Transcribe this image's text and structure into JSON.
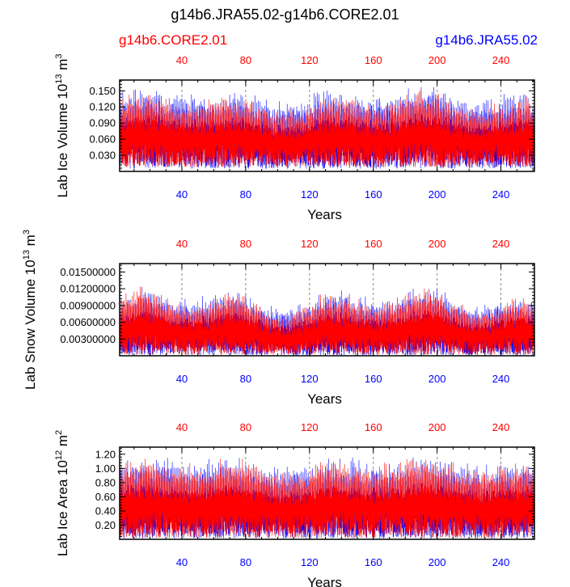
{
  "title": "g14b6.JRA55.02-g14b6.CORE2.01",
  "legend": {
    "left_label": "g14b6.CORE2.01",
    "right_label": "g14b6.JRA55.02"
  },
  "colors": {
    "core": "#ff0000",
    "jra": "#0000ff",
    "frame": "#000000"
  },
  "chart_data": [
    {
      "type": "line",
      "title": "",
      "ylabel": "Lab Ice Volume 10^13 m^3",
      "ylabel_main": "Lab Ice Volume 10",
      "ylabel_exp": "13",
      "ylabel_unit": "m",
      "ylabel_unit_exp": "3",
      "xlabel": "Years",
      "xlim": [
        1,
        261
      ],
      "ylim": [
        0.0,
        0.17
      ],
      "yticks": [
        0.03,
        0.06,
        0.09,
        0.12,
        0.15
      ],
      "ytick_labels": [
        "0.030",
        "0.060",
        "0.090",
        "0.120",
        "0.150"
      ],
      "xticks": [
        40,
        80,
        120,
        160,
        200,
        240
      ],
      "xtick_labels": [
        "40",
        "80",
        "120",
        "160",
        "200",
        "240"
      ],
      "top_xtick_labels": [
        "40",
        "80",
        "120",
        "160",
        "200",
        "240"
      ],
      "series": [
        {
          "name": "g14b6.JRA55.02",
          "color": "#0000ff",
          "seasonal_min": 0.005,
          "seasonal_max_mean": 0.14,
          "seasonal_max_amp": 0.015
        },
        {
          "name": "g14b6.CORE2.01",
          "color": "#ff0000",
          "seasonal_min": 0.008,
          "seasonal_max_mean": 0.128,
          "seasonal_max_amp": 0.018
        }
      ]
    },
    {
      "type": "line",
      "title": "",
      "ylabel": "Lab Snow Volume 10^13 m^3",
      "ylabel_main": "Lab Snow Volume 10",
      "ylabel_exp": "13",
      "ylabel_unit": "m",
      "ylabel_unit_exp": "3",
      "xlabel": "Years",
      "xlim": [
        1,
        261
      ],
      "ylim": [
        0.0,
        0.0165
      ],
      "yticks": [
        0.003,
        0.006,
        0.009,
        0.012,
        0.015
      ],
      "ytick_labels": [
        "0.00300000",
        "0.00600000",
        "0.00900000",
        "0.01200000",
        "0.01500000"
      ],
      "xticks": [
        40,
        80,
        120,
        160,
        200,
        240
      ],
      "xtick_labels": [
        "40",
        "80",
        "120",
        "160",
        "200",
        "240"
      ],
      "top_xtick_labels": [
        "40",
        "80",
        "120",
        "160",
        "200",
        "240"
      ],
      "series": [
        {
          "name": "g14b6.JRA55.02",
          "color": "#0000ff",
          "seasonal_min": 0.0001,
          "seasonal_max_mean": 0.01,
          "seasonal_max_amp": 0.002
        },
        {
          "name": "g14b6.CORE2.01",
          "color": "#ff0000",
          "seasonal_min": 0.0002,
          "seasonal_max_mean": 0.0095,
          "seasonal_max_amp": 0.0025
        }
      ]
    },
    {
      "type": "line",
      "title": "",
      "ylabel": "Lab Ice Area 10^12 m^2",
      "ylabel_main": "Lab Ice Area 10",
      "ylabel_exp": "12",
      "ylabel_unit": "m",
      "ylabel_unit_exp": "2",
      "xlabel": "Years",
      "xlim": [
        1,
        261
      ],
      "ylim": [
        0.0,
        1.3
      ],
      "yticks": [
        0.2,
        0.4,
        0.6,
        0.8,
        1.0,
        1.2
      ],
      "ytick_labels": [
        "0.20",
        "0.40",
        "0.60",
        "0.80",
        "1.00",
        "1.20"
      ],
      "xticks": [
        40,
        80,
        120,
        160,
        200,
        240
      ],
      "xtick_labels": [
        "40",
        "80",
        "120",
        "160",
        "200",
        "240"
      ],
      "top_xtick_labels": [
        "40",
        "80",
        "120",
        "160",
        "200",
        "240"
      ],
      "series": [
        {
          "name": "g14b6.JRA55.02",
          "color": "#0000ff",
          "seasonal_min": 0.01,
          "seasonal_max_mean": 1.06,
          "seasonal_max_amp": 0.08
        },
        {
          "name": "g14b6.CORE2.01",
          "color": "#ff0000",
          "seasonal_min": 0.02,
          "seasonal_max_mean": 1.04,
          "seasonal_max_amp": 0.1
        }
      ]
    }
  ]
}
